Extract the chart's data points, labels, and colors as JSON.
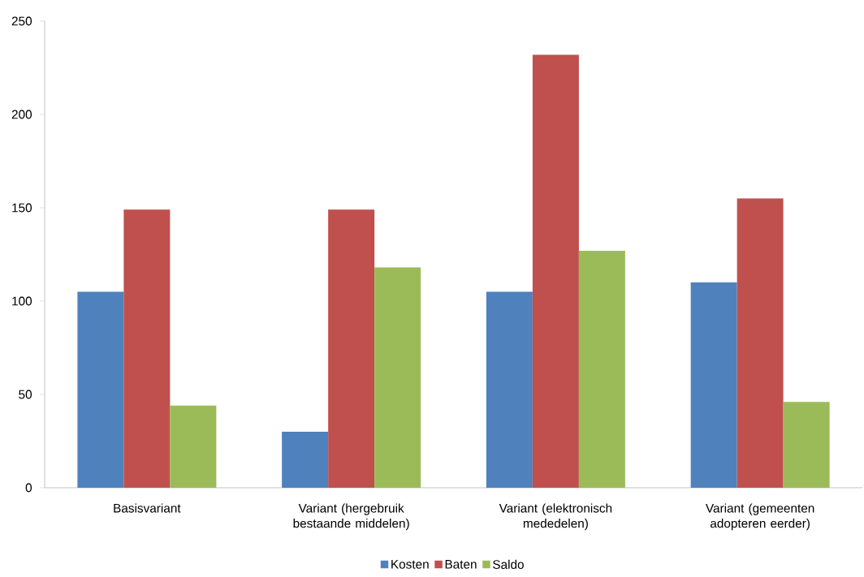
{
  "chart_data": {
    "type": "bar",
    "categories": [
      "Basisvariant",
      "Variant (hergebruik bestaande middelen)",
      "Variant (elektronisch mededelen)",
      "Variant (gemeenten adopteren eerder)"
    ],
    "series": [
      {
        "name": "Kosten",
        "color": "#4f81bd",
        "values": [
          105,
          30,
          105,
          110
        ]
      },
      {
        "name": "Baten",
        "color": "#c0504d",
        "values": [
          149,
          149,
          232,
          155
        ]
      },
      {
        "name": "Saldo",
        "color": "#9bbb59",
        "values": [
          44,
          118,
          127,
          46
        ]
      }
    ],
    "ylim": [
      0,
      250
    ],
    "yticks": [
      0,
      50,
      100,
      150,
      200,
      250
    ],
    "legend": "bottom"
  }
}
